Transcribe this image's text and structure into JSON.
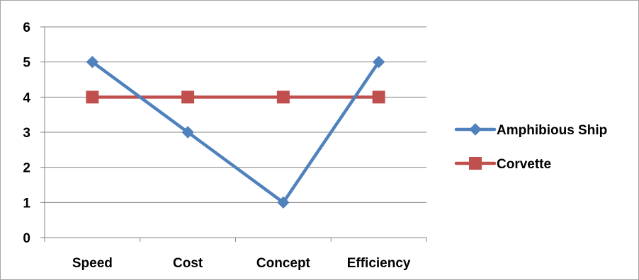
{
  "chart_data": {
    "type": "line",
    "title": "",
    "xlabel": "",
    "ylabel": "",
    "categories": [
      "Speed",
      "Cost",
      "Concept",
      "Efficiency"
    ],
    "ylim": [
      0,
      6
    ],
    "yticks": [
      0,
      1,
      2,
      3,
      4,
      5,
      6
    ],
    "grid": "horizontal major gridlines",
    "legend_position": "right",
    "series": [
      {
        "name": "Amphibious Ship",
        "values": [
          5,
          3,
          1,
          5
        ],
        "color": "#4f81bd",
        "marker": "diamond"
      },
      {
        "name": "Corvette",
        "values": [
          4,
          4,
          4,
          4
        ],
        "color": "#c0504d",
        "marker": "square"
      }
    ]
  }
}
